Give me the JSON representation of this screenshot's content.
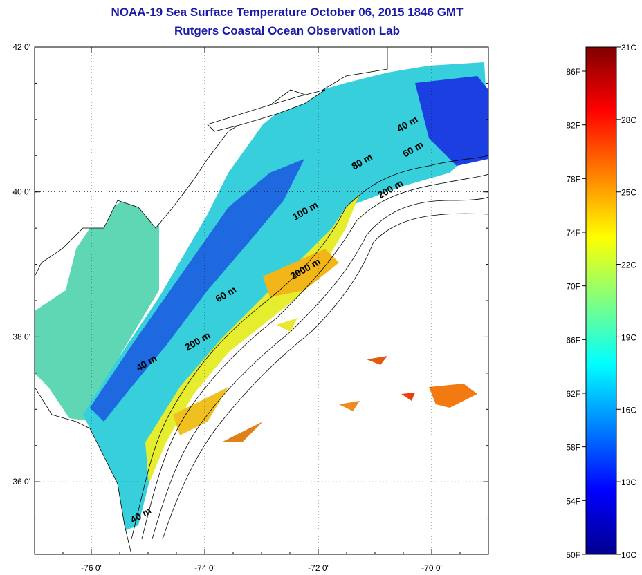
{
  "header": {
    "title": "NOAA-19 Sea Surface Temperature October 06, 2015 1846 GMT",
    "subtitle": "Rutgers Coastal Ocean Observation Lab"
  },
  "map": {
    "lon_range": [
      -77.0,
      -69.0
    ],
    "lat_range": [
      35.0,
      42.0
    ],
    "x_ticks": [
      {
        "value": -76,
        "label": "-76 0'"
      },
      {
        "value": -74,
        "label": "-74 0'"
      },
      {
        "value": -72,
        "label": "-72 0'"
      },
      {
        "value": -70,
        "label": "-70 0'"
      }
    ],
    "y_ticks": [
      {
        "value": 42,
        "label": "42 0'"
      },
      {
        "value": 40,
        "label": "40 0'"
      },
      {
        "value": 38,
        "label": "38 0'"
      },
      {
        "value": 36,
        "label": "36 0'"
      }
    ],
    "grid": true,
    "contour_labels": [
      {
        "text": "40 m",
        "lon": -70.4,
        "lat": 40.9
      },
      {
        "text": "60 m",
        "lon": -70.3,
        "lat": 40.55
      },
      {
        "text": "80 m",
        "lon": -71.2,
        "lat": 40.38
      },
      {
        "text": "200 m",
        "lon": -70.7,
        "lat": 40.0
      },
      {
        "text": "100 m",
        "lon": -72.2,
        "lat": 39.7
      },
      {
        "text": "2000 m",
        "lon": -72.2,
        "lat": 38.9
      },
      {
        "text": "60 m",
        "lon": -73.6,
        "lat": 38.55
      },
      {
        "text": "200 m",
        "lon": -74.1,
        "lat": 37.9
      },
      {
        "text": "40 m",
        "lon": -75.0,
        "lat": 37.6
      },
      {
        "text": "40 m",
        "lon": -75.1,
        "lat": 35.5
      }
    ]
  },
  "colorbar": {
    "celsius_labels": [
      "31C",
      "28C",
      "25C",
      "22C",
      "19C",
      "16C",
      "13C",
      "10C"
    ],
    "fahrenheit_labels": [
      "86F",
      "82F",
      "78F",
      "74F",
      "70F",
      "66F",
      "62F",
      "58F",
      "54F",
      "50F"
    ],
    "range_c": [
      10,
      31
    ],
    "colors": [
      "#00008f",
      "#0000ff",
      "#0080ff",
      "#00ffff",
      "#80ff80",
      "#ffff00",
      "#ff8000",
      "#ff0000",
      "#800000"
    ]
  }
}
